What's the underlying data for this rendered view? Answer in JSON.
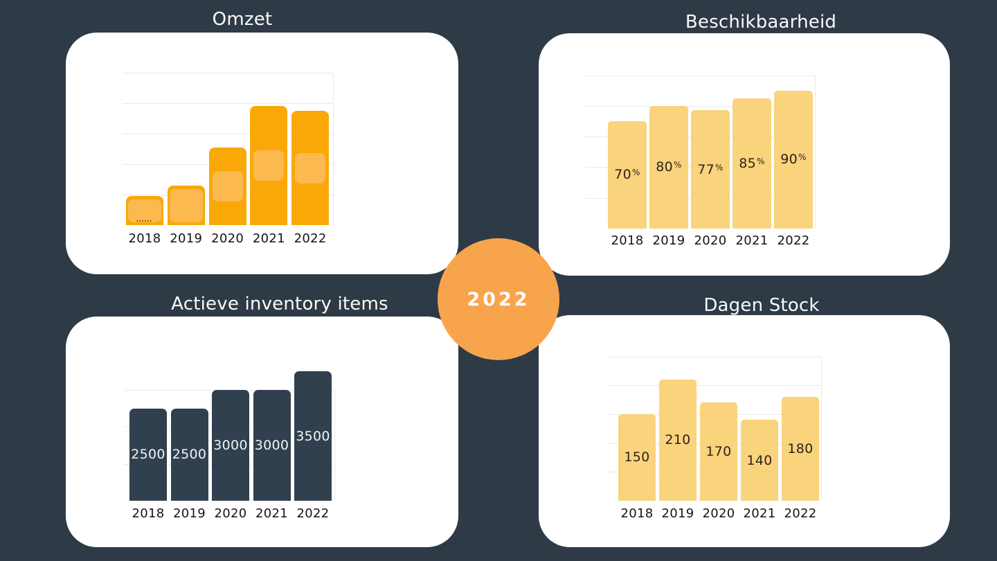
{
  "page": {
    "background_color": "#2e3b46",
    "card_color": "#ffffff",
    "title_color": "#fafafa",
    "year_badge": {
      "label": "2022",
      "color": "#f8a44c",
      "text_color": "#ffffff"
    }
  },
  "chart_data": [
    {
      "id": "omzet",
      "type": "bar",
      "title": "Omzet",
      "categories": [
        "2018",
        "2019",
        "2020",
        "2021",
        "2022"
      ],
      "values": [
        19,
        26,
        51,
        78,
        75
      ],
      "value_labels": null,
      "label_suffix": "",
      "ylim": [
        0,
        100
      ],
      "axis_note": "no numeric axis labels visible; values estimated from gridlines (5 divisions)",
      "grid": true,
      "legend": false,
      "bar_color": "#f9a807",
      "highlight_color": "#fcb950",
      "value_label_color": null
    },
    {
      "id": "beschikbaarheid",
      "type": "bar",
      "title": "Beschikbaarheid",
      "categories": [
        "2018",
        "2019",
        "2020",
        "2021",
        "2022"
      ],
      "values": [
        70,
        80,
        77,
        85,
        90
      ],
      "value_labels": [
        "70",
        "80",
        "77",
        "85",
        "90"
      ],
      "label_suffix": "%",
      "ylim": [
        0,
        100
      ],
      "grid": true,
      "legend": false,
      "bar_color": "#fad37d",
      "value_label_color": "#2b2417"
    },
    {
      "id": "actieve-inventory-items",
      "type": "bar",
      "title": "Actieve inventory items",
      "categories": [
        "2018",
        "2019",
        "2020",
        "2021",
        "2022"
      ],
      "values": [
        2500,
        2500,
        3000,
        3000,
        3500
      ],
      "value_labels": [
        "2500",
        "2500",
        "3000",
        "3000",
        "3500"
      ],
      "label_suffix": "",
      "ylim": [
        0,
        3500
      ],
      "grid": true,
      "legend": false,
      "bar_color": "#30404e",
      "value_label_color": "#f2f5f6"
    },
    {
      "id": "dagen-stock",
      "type": "bar",
      "title": "Dagen Stock",
      "categories": [
        "2018",
        "2019",
        "2020",
        "2021",
        "2022"
      ],
      "values": [
        150,
        210,
        170,
        140,
        180
      ],
      "value_labels": [
        "150",
        "210",
        "170",
        "140",
        "180"
      ],
      "label_suffix": "",
      "ylim": [
        0,
        250
      ],
      "grid": true,
      "legend": false,
      "bar_color": "#fad37d",
      "value_label_color": "#2b2417"
    }
  ]
}
